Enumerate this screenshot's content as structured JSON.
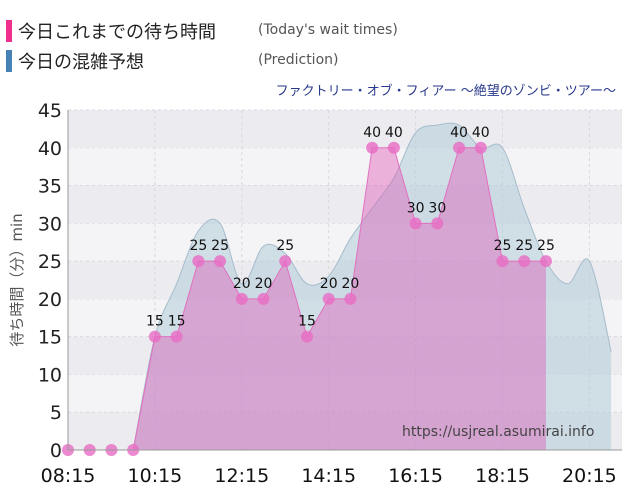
{
  "legend": {
    "today_label": "今日これまでの待ち時間",
    "today_sub": "(Today's wait times)",
    "today_color": "#f0308c",
    "prediction_label": "今日の混雑予想",
    "prediction_sub": "(Prediction)",
    "prediction_color": "#4682b4"
  },
  "subtitle": "ファクトリー・オブ・フィアー 〜絶望のゾンビ・ツアー〜",
  "watermark": "https://usjreal.asumirai.info",
  "chart_data": {
    "type": "area",
    "ylabel": "待ち時間（分）min",
    "ylim": [
      0,
      45
    ],
    "yticks": [
      0,
      5,
      10,
      15,
      20,
      25,
      30,
      35,
      40,
      45
    ],
    "xlim": [
      "08:15",
      "21:00"
    ],
    "xticks": [
      "08:15",
      "10:15",
      "12:15",
      "14:15",
      "16:15",
      "18:15",
      "20:15"
    ],
    "grid": true,
    "series": [
      {
        "name": "今日これまでの待ち時間",
        "color": "#e060b8",
        "x": [
          "08:15",
          "08:45",
          "09:15",
          "09:45",
          "10:15",
          "10:45",
          "11:15",
          "11:45",
          "12:15",
          "12:45",
          "13:15",
          "13:45",
          "14:15",
          "14:45",
          "15:15",
          "15:45",
          "16:15",
          "16:45",
          "17:15",
          "17:45",
          "18:15",
          "18:45",
          "19:15"
        ],
        "values": [
          0,
          0,
          0,
          0,
          15,
          15,
          25,
          25,
          20,
          20,
          25,
          15,
          20,
          20,
          40,
          40,
          30,
          30,
          40,
          40,
          25,
          25,
          25
        ],
        "labels": [
          "",
          "",
          "",
          "",
          "15",
          "15",
          "25",
          "25",
          "20",
          "20",
          "25",
          "15",
          "20",
          "20",
          "40",
          "40",
          "30",
          "30",
          "40",
          "40",
          "25",
          "25",
          "25"
        ]
      },
      {
        "name": "今日の混雑予想",
        "color": "#b8cfdc",
        "x": [
          "09:45",
          "10:15",
          "10:45",
          "11:15",
          "11:45",
          "12:15",
          "12:45",
          "13:15",
          "13:45",
          "14:15",
          "14:45",
          "15:15",
          "15:45",
          "16:15",
          "16:45",
          "17:15",
          "17:45",
          "18:15",
          "18:45",
          "19:15",
          "19:45",
          "20:15",
          "20:45"
        ],
        "values": [
          0,
          15,
          22,
          29,
          30,
          22,
          27,
          26,
          22,
          23,
          28,
          32,
          36,
          42,
          43,
          43,
          40,
          40,
          32,
          25,
          22,
          25,
          13
        ]
      }
    ]
  }
}
